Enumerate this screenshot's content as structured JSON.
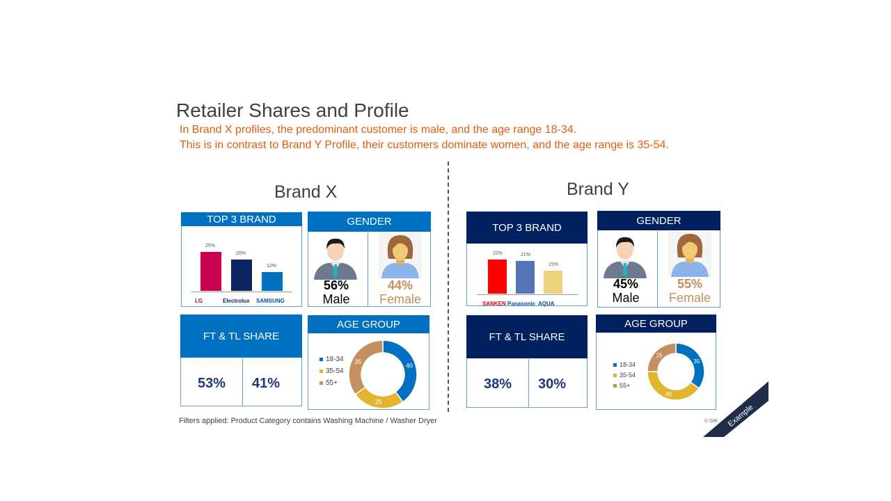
{
  "title": "Retailer Shares and Profile",
  "subtitle_lines": [
    "In Brand X profiles, the predominant customer is male, and the age range 18-34.",
    "This is in contrast to Brand Y Profile, their customers dominate women, and the age range is 35-54."
  ],
  "colors": {
    "accent": "#0070c0",
    "navy": "#002060",
    "orange": "#e35d0b",
    "female": "#c4905f"
  },
  "brand_x": {
    "name": "Brand X",
    "top3_label": "TOP 3 BRAND",
    "brands": [
      {
        "name": "LG",
        "value": 25,
        "label": "25%",
        "color": "#c8004f"
      },
      {
        "name": "Electrolux",
        "value": 20,
        "label": "20%",
        "color": "#0c2461"
      },
      {
        "name": "SAMSUNG",
        "value": 12,
        "label": "12%",
        "color": "#0070c0"
      }
    ],
    "gender_label": "GENDER",
    "male_pct": "56%",
    "male_label": "Male",
    "female_pct": "44%",
    "female_label": "Female",
    "share_label": "FT & TL SHARE",
    "ft_share": "53%",
    "tl_share": "41%",
    "age_label": "AGE GROUP",
    "age": [
      {
        "name": "18-34",
        "value": 40,
        "color": "#0070c0"
      },
      {
        "name": "35-54",
        "value": 25,
        "color": "#e3b52c"
      },
      {
        "name": "55+",
        "value": 35,
        "color": "#c4905f"
      }
    ]
  },
  "brand_y": {
    "name": "Brand Y",
    "top3_label": "TOP 3 BRAND",
    "brands": [
      {
        "name": "SANKEN",
        "value": 22,
        "label": "22%",
        "color": "#ff0000"
      },
      {
        "name": "Panasonic",
        "value": 21,
        "label": "21%",
        "color": "#5674b8"
      },
      {
        "name": "AQUA",
        "value": 15,
        "label": "15%",
        "color": "#edd27e"
      }
    ],
    "gender_label": "GENDER",
    "male_pct": "45%",
    "male_label": "Male",
    "female_pct": "55%",
    "female_label": "Female",
    "share_label": "FT & TL SHARE",
    "ft_share": "38%",
    "tl_share": "30%",
    "age_label": "AGE GROUP",
    "age": [
      {
        "name": "18-34",
        "value": 35,
        "color": "#0070c0"
      },
      {
        "name": "35-54",
        "value": 40,
        "color": "#e3b52c"
      },
      {
        "name": "55+",
        "value": 25,
        "color": "#c4905f"
      }
    ]
  },
  "footer": "Filters applied: Product Category contains Washing Machine / Washer Dryer",
  "copyright": "© GfK",
  "ribbon": "Example"
}
